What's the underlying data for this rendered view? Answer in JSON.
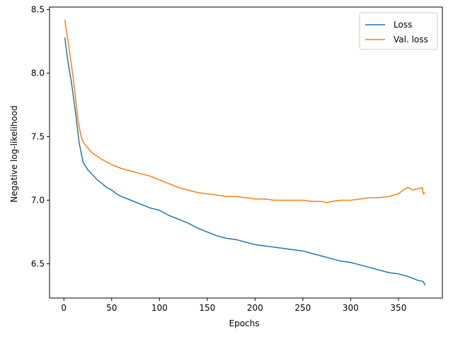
{
  "chart_data": {
    "type": "line",
    "title": "",
    "xlabel": "Epochs",
    "ylabel": "Negative log-likelihood",
    "xlim": [
      -15,
      396
    ],
    "ylim": [
      6.23,
      8.52
    ],
    "xticks": [
      0,
      50,
      100,
      150,
      200,
      250,
      300,
      350
    ],
    "yticks": [
      6.5,
      7.0,
      7.5,
      8.0,
      8.5
    ],
    "ytick_labels": [
      "6.5",
      "7.0",
      "7.5",
      "8.0",
      "8.5"
    ],
    "grid": false,
    "legend_position": "top-right",
    "series": [
      {
        "name": "Loss",
        "color": "#1f77b4",
        "x": [
          1,
          4,
          8,
          12,
          16,
          20,
          25,
          30,
          35,
          40,
          45,
          50,
          55,
          60,
          70,
          80,
          90,
          100,
          110,
          120,
          130,
          140,
          150,
          160,
          170,
          180,
          190,
          200,
          210,
          220,
          230,
          240,
          250,
          260,
          270,
          280,
          290,
          300,
          310,
          320,
          330,
          340,
          350,
          360,
          370,
          376,
          378
        ],
        "values": [
          8.28,
          8.1,
          7.92,
          7.7,
          7.45,
          7.3,
          7.24,
          7.2,
          7.16,
          7.13,
          7.1,
          7.08,
          7.05,
          7.03,
          7.0,
          6.97,
          6.94,
          6.92,
          6.88,
          6.85,
          6.82,
          6.78,
          6.75,
          6.72,
          6.7,
          6.69,
          6.67,
          6.65,
          6.64,
          6.63,
          6.62,
          6.61,
          6.6,
          6.58,
          6.56,
          6.54,
          6.52,
          6.51,
          6.49,
          6.47,
          6.45,
          6.43,
          6.42,
          6.4,
          6.37,
          6.36,
          6.33
        ]
      },
      {
        "name": "Val. loss",
        "color": "#ff7f0e",
        "x": [
          1,
          5,
          10,
          15,
          18,
          20,
          25,
          30,
          40,
          50,
          60,
          70,
          80,
          90,
          100,
          110,
          120,
          130,
          140,
          150,
          160,
          170,
          180,
          190,
          200,
          210,
          220,
          230,
          240,
          250,
          260,
          270,
          275,
          280,
          290,
          300,
          310,
          320,
          330,
          340,
          350,
          355,
          360,
          365,
          370,
          375,
          376,
          378
        ],
        "values": [
          8.42,
          8.22,
          7.95,
          7.62,
          7.5,
          7.46,
          7.41,
          7.37,
          7.32,
          7.28,
          7.25,
          7.23,
          7.21,
          7.19,
          7.16,
          7.13,
          7.1,
          7.08,
          7.06,
          7.05,
          7.04,
          7.03,
          7.03,
          7.02,
          7.01,
          7.01,
          7.0,
          7.0,
          7.0,
          7.0,
          6.99,
          6.99,
          6.98,
          6.99,
          7.0,
          7.0,
          7.01,
          7.02,
          7.02,
          7.03,
          7.05,
          7.08,
          7.1,
          7.08,
          7.09,
          7.1,
          7.05,
          7.06
        ]
      }
    ]
  }
}
